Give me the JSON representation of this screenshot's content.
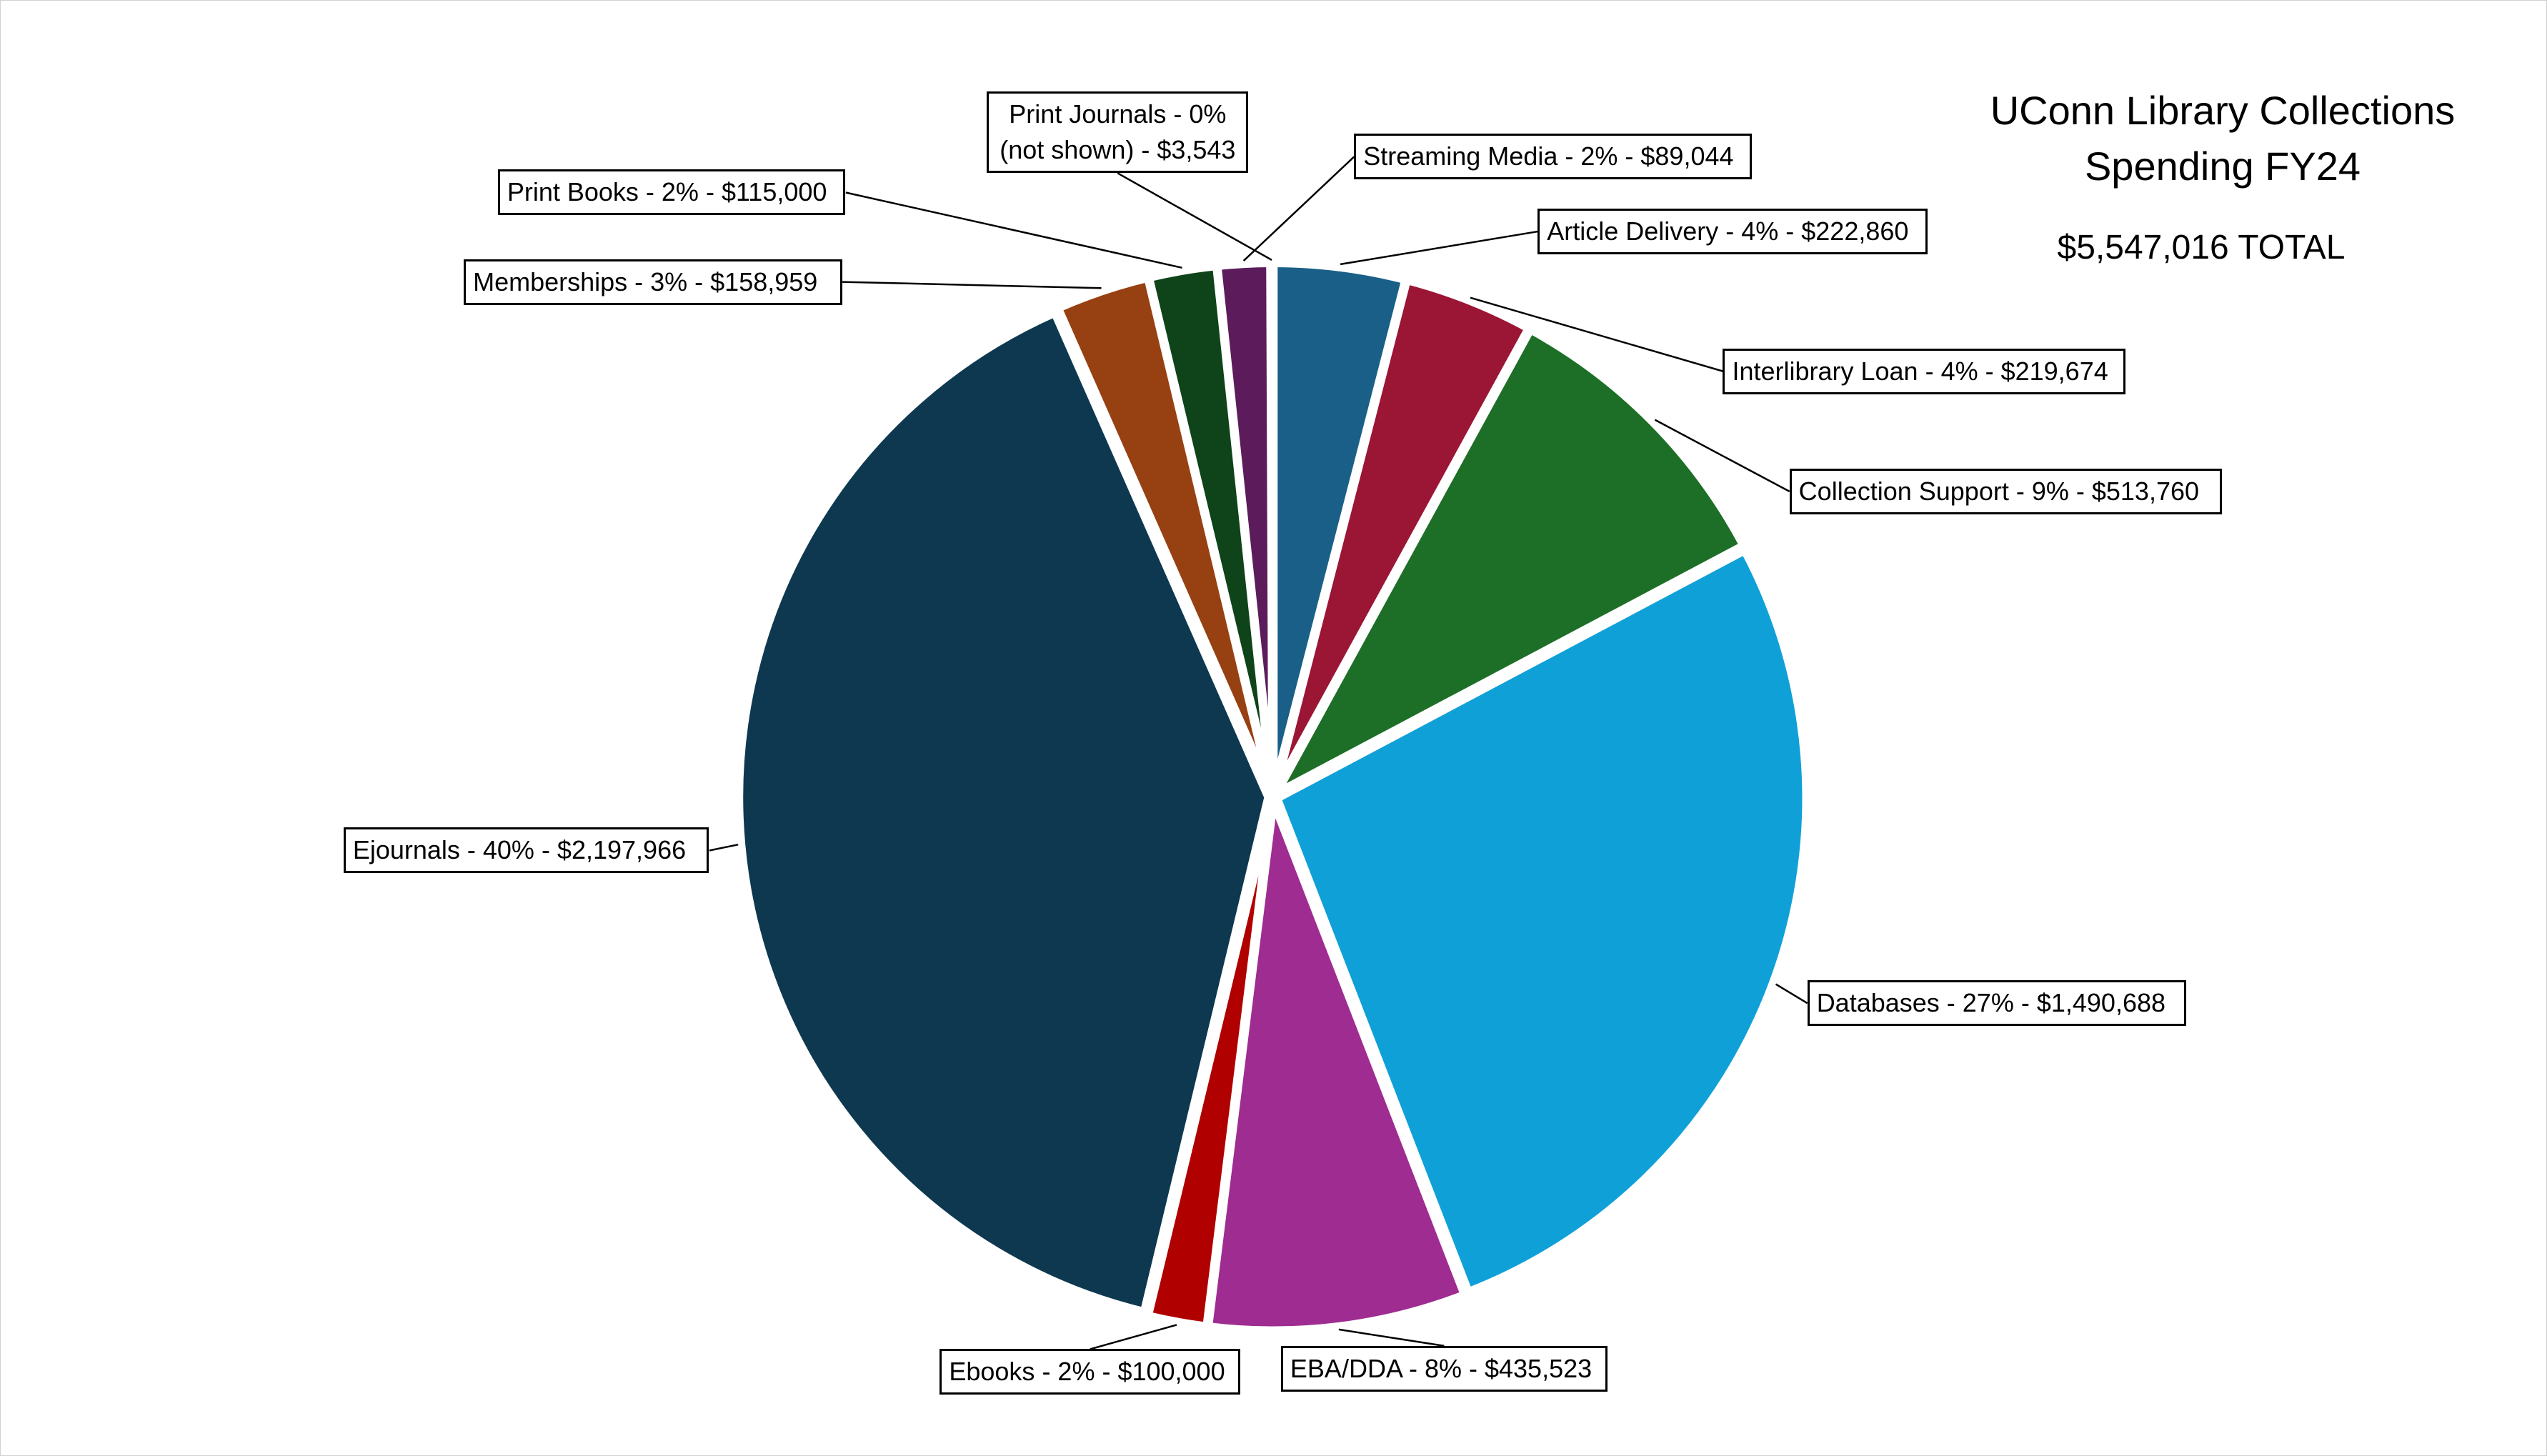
{
  "chart_data": {
    "type": "pie",
    "title": "UConn Library Collections Spending FY24",
    "subtitle": "$5,547,016 TOTAL",
    "labels": [
      "Article Delivery - 4% - $222,860",
      "Interlibrary Loan - 4% - $219,674",
      "Collection Support - 9% - $513,760",
      "Databases - 27% - $1,490,688",
      "EBA/DDA - 8% - $435,523",
      "Ebooks - 2% - $100,000",
      "Ejournals - 40% - $2,197,966",
      "Memberships - 3% - $158,959",
      "Print Books - 2% - $115,000",
      "Streaming Media - 2% - $89,044",
      "Print Journals - 0% (not shown) - $3,543"
    ],
    "values": [
      222860,
      219674,
      513760,
      1490688,
      435523,
      100000,
      2197966,
      158959,
      115000,
      89044,
      3543
    ],
    "colors": [
      "#1a5f87",
      "#9b1535",
      "#1d6e27",
      "#10a0d8",
      "#9e2c91",
      "#b00000",
      "#0d384f",
      "#974011",
      "#0f4319",
      "#5c1c5b",
      "#7f7f7f"
    ]
  }
}
